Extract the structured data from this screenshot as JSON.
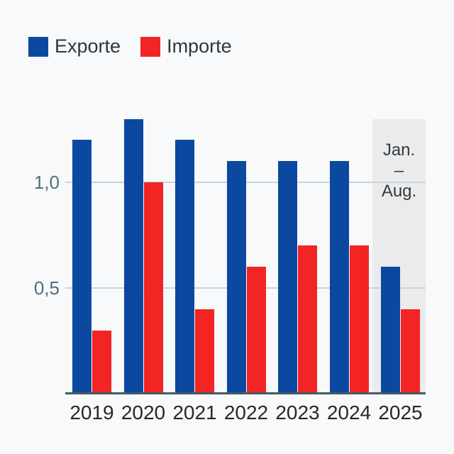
{
  "colors": {
    "background": "#f8f9fa",
    "export_blue": "#0b48a0",
    "import_red": "#f22424",
    "gridline": "#c8d3dd",
    "axis_line": "#455a64",
    "highlight_band": "#ebebec",
    "y_label_text": "#4f6d80",
    "x_label_text": "#26282b",
    "legend_text": "#2e373e",
    "annotation_text": "#2e3c44"
  },
  "legend": {
    "items": [
      {
        "label": "Exporte",
        "color": "#0b48a0"
      },
      {
        "label": "Importe",
        "color": "#f22424"
      }
    ]
  },
  "annotation": {
    "lines": [
      "Jan.",
      "–",
      "Aug."
    ]
  },
  "chart_data": {
    "type": "bar",
    "categories": [
      "2019",
      "2020",
      "2021",
      "2022",
      "2023",
      "2024",
      "2025"
    ],
    "series": [
      {
        "name": "Exporte",
        "color": "#0b48a0",
        "values": [
          1.2,
          1.3,
          1.2,
          1.1,
          1.1,
          1.1,
          0.6
        ]
      },
      {
        "name": "Importe",
        "color": "#f22424",
        "values": [
          0.3,
          1.0,
          0.4,
          0.6,
          0.7,
          0.7,
          0.4
        ]
      }
    ],
    "yticks": [
      {
        "value": 1.0,
        "label": "1,0"
      },
      {
        "value": 0.5,
        "label": "0,5"
      }
    ],
    "ylim": [
      0,
      1.37
    ],
    "grid": true,
    "legend_position": "top-left",
    "highlight": {
      "category": "2025",
      "label": "Jan. – Aug."
    }
  }
}
